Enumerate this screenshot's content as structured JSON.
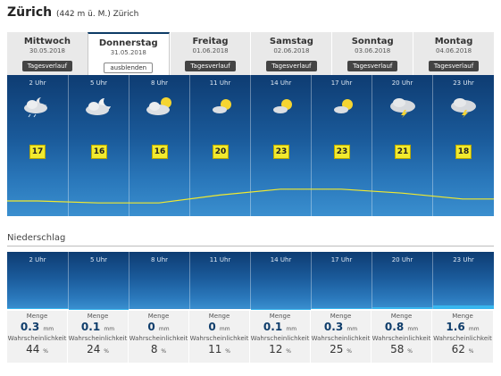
{
  "location": {
    "name": "Zürich",
    "detail": "(442 m ü. M.) Zürich"
  },
  "days": [
    {
      "name": "Mittwoch",
      "date": "30.05.2018",
      "button": "Tagesverlauf",
      "active": false
    },
    {
      "name": "Donnerstag",
      "date": "31.05.2018",
      "button": "ausblenden",
      "active": true
    },
    {
      "name": "Freitag",
      "date": "01.06.2018",
      "button": "Tagesverlauf",
      "active": false
    },
    {
      "name": "Samstag",
      "date": "02.06.2018",
      "button": "Tagesverlauf",
      "active": false
    },
    {
      "name": "Sonntag",
      "date": "03.06.2018",
      "button": "Tagesverlauf",
      "active": false
    },
    {
      "name": "Montag",
      "date": "04.06.2018",
      "button": "Tagesverlauf",
      "active": false
    }
  ],
  "hours": [
    {
      "time": "2 Uhr",
      "temp": "17",
      "icon": "night-cloud-rain-icon"
    },
    {
      "time": "5 Uhr",
      "temp": "16",
      "icon": "night-cloud-icon"
    },
    {
      "time": "8 Uhr",
      "temp": "16",
      "icon": "sun-cloud-icon"
    },
    {
      "time": "11 Uhr",
      "temp": "20",
      "icon": "sun-small-cloud-icon"
    },
    {
      "time": "14 Uhr",
      "temp": "23",
      "icon": "sun-small-cloud-icon"
    },
    {
      "time": "17 Uhr",
      "temp": "23",
      "icon": "sun-small-cloud-icon"
    },
    {
      "time": "20 Uhr",
      "temp": "21",
      "icon": "thunderstorm-icon"
    },
    {
      "time": "23 Uhr",
      "temp": "18",
      "icon": "thunderstorm-icon"
    }
  ],
  "precipitation": {
    "heading": "Niederschlag",
    "amount_label": "Menge",
    "probability_label": "Wahrscheinlichkeit",
    "amount_unit": "mm",
    "probability_unit": "%",
    "slots": [
      {
        "time": "2 Uhr",
        "amount": "0.3",
        "probability": "44"
      },
      {
        "time": "5 Uhr",
        "amount": "0.1",
        "probability": "24"
      },
      {
        "time": "8 Uhr",
        "amount": "0",
        "probability": "8"
      },
      {
        "time": "11 Uhr",
        "amount": "0",
        "probability": "11"
      },
      {
        "time": "14 Uhr",
        "amount": "0.1",
        "probability": "12"
      },
      {
        "time": "17 Uhr",
        "amount": "0.3",
        "probability": "25"
      },
      {
        "time": "20 Uhr",
        "amount": "0.8",
        "probability": "58"
      },
      {
        "time": "23 Uhr",
        "amount": "1.6",
        "probability": "62"
      }
    ]
  },
  "colors": {
    "panel_top": "#0e3c72",
    "panel_bottom": "#3a8fcf",
    "temp_badge": "#f2ea2e",
    "precip_bar": "#38b6ee",
    "temp_line": "#f2ea2e"
  }
}
